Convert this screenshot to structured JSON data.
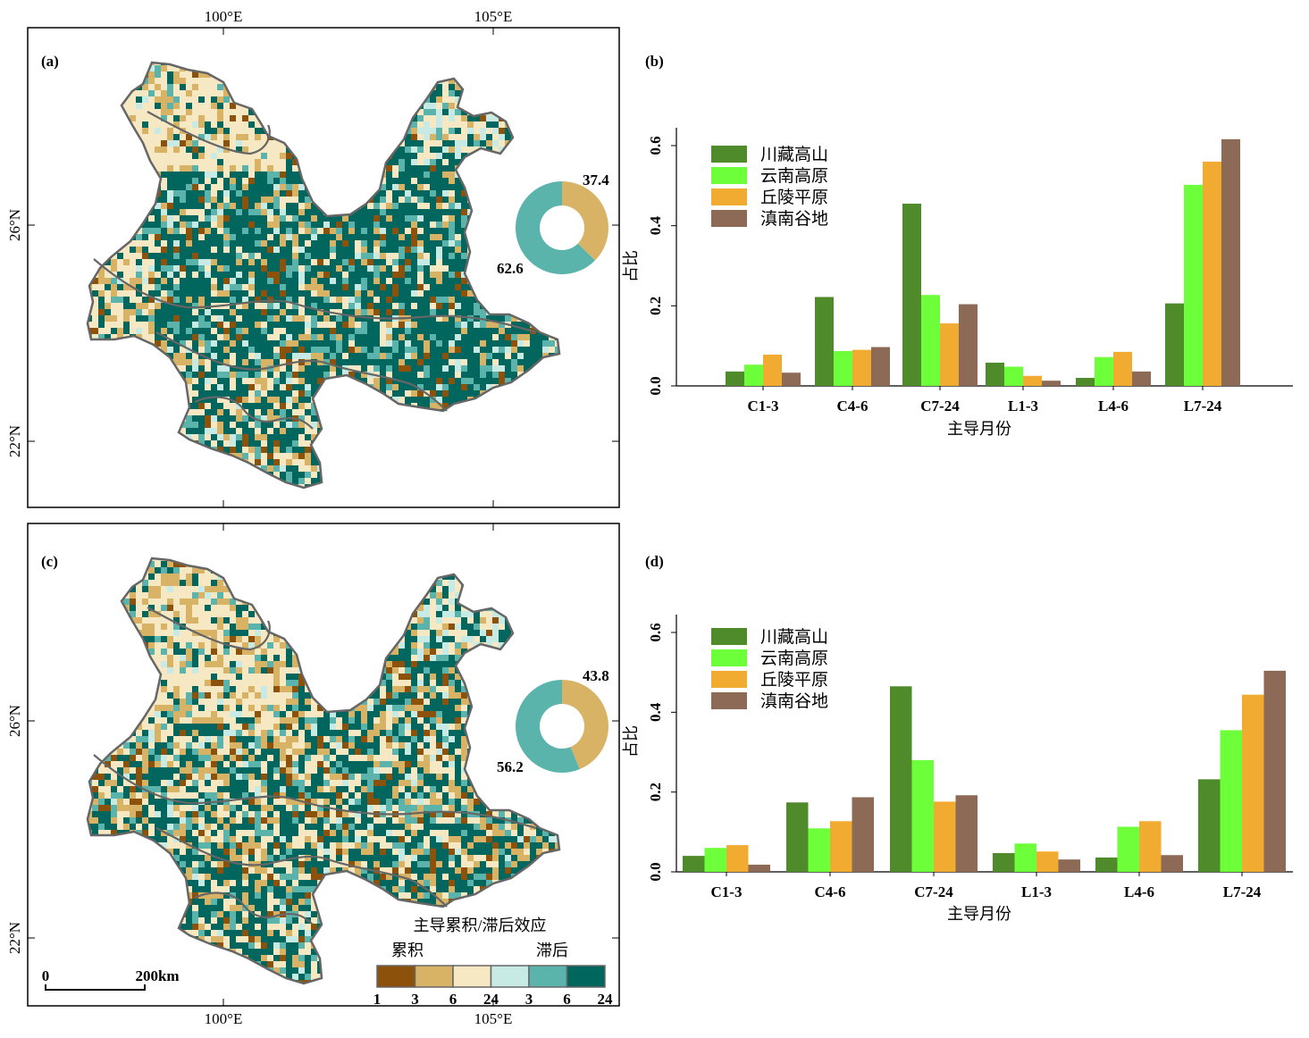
{
  "colors": {
    "cum1": "#8c510a",
    "cum3": "#d8b365",
    "cum6": "#f6e8c3",
    "lag3": "#c7eae5",
    "lag6": "#5ab4ac",
    "lag24": "#01665e",
    "s1": "#4f8a2b",
    "s2": "#6cff3a",
    "s3": "#f0ab30",
    "s4": "#8c6a55",
    "boundary": "#666666"
  },
  "maps": [
    {
      "panel_label": "(a)",
      "top_lon": [
        "100°E",
        "105°E"
      ],
      "lats": [
        "26°N",
        "22°N"
      ],
      "donut": {
        "cum_pct": "37.4",
        "lag_pct": "62.6"
      }
    },
    {
      "panel_label": "(c)",
      "bottom_lon": [
        "100°E",
        "105°E"
      ],
      "lats": [
        "26°N",
        "22°N"
      ],
      "donut": {
        "cum_pct": "43.8",
        "lag_pct": "56.2"
      }
    }
  ],
  "legend": {
    "title": "主导累积/滞后效应",
    "cum_label": "累积",
    "lag_label": "滞后",
    "ticks": [
      "1",
      "3",
      "6",
      "24",
      "3",
      "6",
      "24"
    ]
  },
  "scalebar": {
    "start": "0",
    "end": "200km"
  },
  "chart_data": [
    {
      "type": "bar",
      "panel_label": "(b)",
      "categories": [
        "C1-3",
        "C4-6",
        "C7-24",
        "L1-3",
        "L4-6",
        "L7-24"
      ],
      "xlabel": "主导月份",
      "ylabel": "占比",
      "ylim": [
        0,
        0.6
      ],
      "yticks": [
        "0.0",
        "0.2",
        "0.4",
        "0.6"
      ],
      "legend_position": "top-left",
      "series": [
        {
          "name": "川藏高山",
          "values": [
            0.036,
            0.222,
            0.455,
            0.058,
            0.02,
            0.206
          ]
        },
        {
          "name": "云南高原",
          "values": [
            0.053,
            0.087,
            0.227,
            0.048,
            0.072,
            0.502
          ]
        },
        {
          "name": "丘陵平原",
          "values": [
            0.078,
            0.09,
            0.156,
            0.025,
            0.085,
            0.56
          ]
        },
        {
          "name": "滇南谷地",
          "values": [
            0.033,
            0.097,
            0.204,
            0.013,
            0.036,
            0.616
          ]
        }
      ]
    },
    {
      "type": "bar",
      "panel_label": "(d)",
      "categories": [
        "C1-3",
        "C4-6",
        "C7-24",
        "L1-3",
        "L4-6",
        "L7-24"
      ],
      "xlabel": "主导月份",
      "ylabel": "占比",
      "ylim": [
        0,
        0.6
      ],
      "yticks": [
        "0.0",
        "0.2",
        "0.4",
        "0.6"
      ],
      "legend_position": "top-left",
      "series": [
        {
          "name": "川藏高山",
          "values": [
            0.04,
            0.174,
            0.465,
            0.047,
            0.036,
            0.232
          ]
        },
        {
          "name": "云南高原",
          "values": [
            0.06,
            0.109,
            0.28,
            0.071,
            0.113,
            0.355
          ]
        },
        {
          "name": "丘陵平原",
          "values": [
            0.067,
            0.127,
            0.176,
            0.051,
            0.127,
            0.444
          ]
        },
        {
          "name": "滇南谷地",
          "values": [
            0.018,
            0.187,
            0.192,
            0.031,
            0.042,
            0.504
          ]
        }
      ]
    }
  ]
}
